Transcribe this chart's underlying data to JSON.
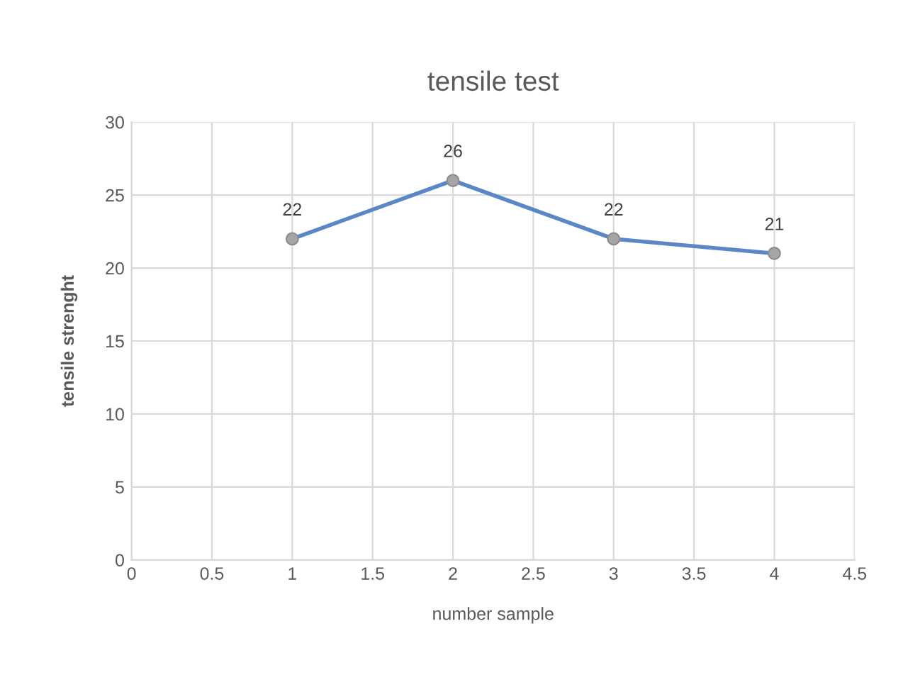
{
  "chart_data": {
    "type": "line",
    "title": "tensile test",
    "xlabel": "number sample",
    "ylabel": "tensile strenght",
    "x": [
      1,
      2,
      3,
      4
    ],
    "series": [
      {
        "color": "#5b87c6",
        "values": [
          22,
          26,
          22,
          21
        ]
      }
    ],
    "data_labels": true,
    "marker": "circle",
    "line_style": "solid",
    "xlim": [
      0,
      4.5
    ],
    "xticks": [
      0,
      0.5,
      1,
      1.5,
      2,
      2.5,
      3,
      3.5,
      4,
      4.5
    ],
    "ylim": [
      0,
      30
    ],
    "yticks": [
      0,
      5,
      10,
      15,
      20,
      25,
      30
    ],
    "grid": true
  }
}
